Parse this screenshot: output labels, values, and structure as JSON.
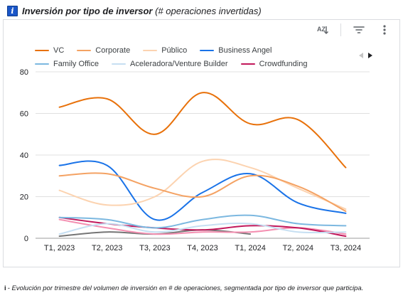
{
  "header": {
    "title_bold": "Inversión por tipo de inversor",
    "title_rest": " (# operaciones invertidas)"
  },
  "toolbar": {
    "sort_icon_text": "AZ"
  },
  "caption": {
    "icon_text": "i",
    "text": "- Evolución por trimestre del volumen de inversión en # de operaciones, segmentada por tipo de inversor que participa."
  },
  "colors": {
    "title_badge": "#1a56c8",
    "grid": "#e0e0e0",
    "axis_text": "#202124"
  },
  "chart_data": {
    "type": "line",
    "categories": [
      "T1, 2023",
      "T2, 2023",
      "T3, 2023",
      "T4, 2023",
      "T1, 2024",
      "T2, 2024",
      "T3, 2024"
    ],
    "ylim": [
      0,
      80
    ],
    "yticks": [
      0,
      20,
      40,
      60,
      80
    ],
    "grid": true,
    "legend_position": "top",
    "series": [
      {
        "name": "VC",
        "color": "#e8710a",
        "values": [
          63,
          67,
          50,
          70,
          55,
          57,
          34
        ]
      },
      {
        "name": "Corporate",
        "color": "#f4a263",
        "values": [
          30,
          31,
          24,
          20,
          30,
          25,
          13
        ]
      },
      {
        "name": "Público",
        "color": "#fcd3b0",
        "values": [
          23,
          16,
          20,
          37,
          34,
          24,
          14
        ]
      },
      {
        "name": "Business Angel",
        "color": "#1a73e8",
        "values": [
          35,
          35,
          9,
          22,
          31,
          17,
          12
        ]
      },
      {
        "name": "Family Office",
        "color": "#7cb8e0",
        "values": [
          10,
          9,
          5,
          9,
          11,
          7,
          6
        ]
      },
      {
        "name": "Aceleradora/Venture Builder",
        "color": "#c6dff2",
        "values": [
          2,
          7,
          3,
          6,
          7,
          3,
          3
        ]
      },
      {
        "name": "Crowdfunding",
        "color": "#c2185b",
        "values": [
          10,
          7,
          5,
          4,
          6,
          5,
          1
        ]
      },
      {
        "name": "",
        "color": "#f48fb1",
        "values": [
          9,
          5,
          2,
          3,
          3,
          5,
          2
        ]
      },
      {
        "name": "",
        "color": "#757575",
        "values": [
          1,
          3,
          2,
          4,
          2,
          null,
          null
        ]
      }
    ]
  }
}
